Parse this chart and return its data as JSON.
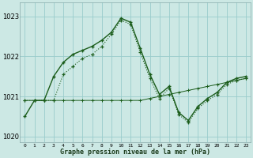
{
  "title": "Graphe pression niveau de la mer (hPa)",
  "bg_color": "#cce8e4",
  "grid_color": "#99cccc",
  "line_color_dark": "#1a5c1a",
  "x_values": [
    0,
    1,
    2,
    3,
    4,
    5,
    6,
    7,
    8,
    9,
    10,
    11,
    12,
    13,
    14,
    15,
    16,
    17,
    18,
    19,
    20,
    21,
    22,
    23
  ],
  "series_main": [
    1020.5,
    1020.9,
    1020.9,
    1021.5,
    1021.85,
    1022.05,
    1022.15,
    1022.25,
    1022.4,
    1022.6,
    1022.95,
    1022.85,
    1022.2,
    1021.55,
    1021.05,
    1021.25,
    1020.6,
    1020.4,
    1020.75,
    1020.95,
    1021.1,
    1021.35,
    1021.45,
    1021.5
  ],
  "series_dotted": [
    1020.9,
    1020.9,
    1020.9,
    1020.9,
    1021.55,
    1021.75,
    1021.95,
    1022.05,
    1022.25,
    1022.55,
    1022.9,
    1022.8,
    1022.1,
    1021.45,
    1020.95,
    1021.2,
    1020.55,
    1020.35,
    1020.7,
    1020.9,
    1021.05,
    1021.3,
    1021.4,
    1021.45
  ],
  "series_flat": [
    1020.9,
    1020.9,
    1020.9,
    1020.9,
    1020.9,
    1020.9,
    1020.9,
    1020.9,
    1020.9,
    1020.9,
    1020.9,
    1020.9,
    1020.9,
    1020.95,
    1021.0,
    1021.05,
    1021.1,
    1021.15,
    1021.2,
    1021.25,
    1021.3,
    1021.35,
    1021.4,
    1021.45
  ],
  "ylim": [
    1019.85,
    1023.35
  ],
  "yticks": [
    1020,
    1021,
    1022,
    1023
  ],
  "xticks": [
    0,
    1,
    2,
    3,
    4,
    5,
    6,
    7,
    8,
    9,
    10,
    11,
    12,
    13,
    14,
    15,
    16,
    17,
    18,
    19,
    20,
    21,
    22,
    23
  ]
}
